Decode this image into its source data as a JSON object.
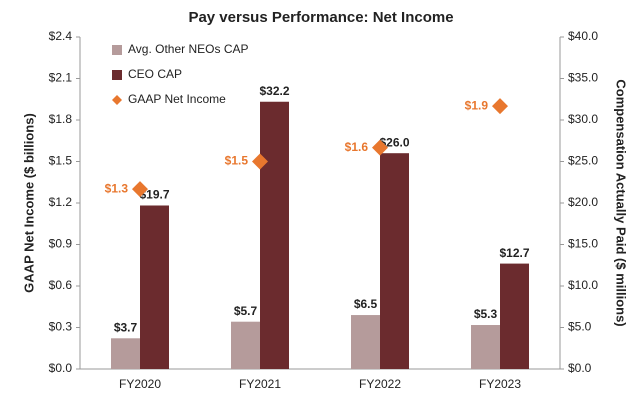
{
  "chart_data": {
    "type": "bar",
    "title": "Pay versus Performance: Net Income",
    "y_label": "GAAP Net Income ($ billions)",
    "y2_label": "Compensation Actually Paid ($ millions)",
    "categories": [
      "FY2020",
      "FY2021",
      "FY2022",
      "FY2023"
    ],
    "series": [
      {
        "name": "Avg. Other NEOs CAP",
        "type": "bar",
        "axis": "y2",
        "color": "#b59b9b",
        "values": [
          3.7,
          5.7,
          6.5,
          5.3
        ],
        "value_labels": [
          "$3.7",
          "$5.7",
          "$6.5",
          "$5.3"
        ]
      },
      {
        "name": "CEO CAP",
        "type": "bar",
        "axis": "y2",
        "color": "#6b2b2e",
        "values": [
          19.7,
          32.2,
          26.0,
          12.7
        ],
        "value_labels": [
          "$19.7",
          "$32.2",
          "$26.0",
          "$12.7"
        ]
      },
      {
        "name": "GAAP Net Income",
        "type": "scatter",
        "axis": "y",
        "color": "#e8772e",
        "values": [
          1.3,
          1.5,
          1.6,
          1.9
        ],
        "value_labels": [
          "$1.3",
          "$1.5",
          "$1.6",
          "$1.9"
        ]
      }
    ],
    "ylim": [
      0,
      2.4
    ],
    "yticks": [
      {
        "value": 0,
        "label": "$0.0"
      },
      {
        "value": 0.3,
        "label": "$0.3"
      },
      {
        "value": 0.6,
        "label": "$0.6"
      },
      {
        "value": 0.9,
        "label": "$0.9"
      },
      {
        "value": 1.2,
        "label": "$1.2"
      },
      {
        "value": 1.5,
        "label": "$1.5"
      },
      {
        "value": 1.8,
        "label": "$1.8"
      },
      {
        "value": 2.1,
        "label": "$2.1"
      },
      {
        "value": 2.4,
        "label": "$2.4"
      }
    ],
    "y2lim": [
      0,
      40
    ],
    "y2ticks": [
      {
        "value": 0,
        "label": "$0.0"
      },
      {
        "value": 5,
        "label": "$5.0"
      },
      {
        "value": 10,
        "label": "$10.0"
      },
      {
        "value": 15,
        "label": "$15.0"
      },
      {
        "value": 20,
        "label": "$20.0"
      },
      {
        "value": 25,
        "label": "$25.0"
      },
      {
        "value": 30,
        "label": "$30.0"
      },
      {
        "value": 35,
        "label": "$35.0"
      },
      {
        "value": 40,
        "label": "$40.0"
      }
    ],
    "legend": "upper left",
    "grid": false
  }
}
